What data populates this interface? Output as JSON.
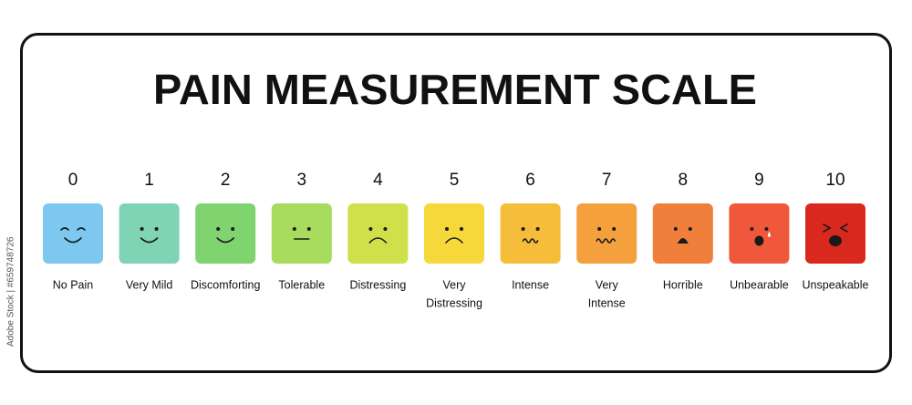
{
  "title": "PAIN MEASUREMENT SCALE",
  "watermark": "Adobe Stock | #659748726",
  "items": [
    {
      "score": "0",
      "label": [
        "No Pain"
      ],
      "color": "#7cc8f0"
    },
    {
      "score": "1",
      "label": [
        "Very Mild"
      ],
      "color": "#7fd4b6"
    },
    {
      "score": "2",
      "label": [
        "Discomforting"
      ],
      "color": "#80d46f"
    },
    {
      "score": "3",
      "label": [
        "Tolerable"
      ],
      "color": "#a8dc5c"
    },
    {
      "score": "4",
      "label": [
        "Distressing"
      ],
      "color": "#cfe04b"
    },
    {
      "score": "5",
      "label": [
        "Very",
        "Distressing"
      ],
      "color": "#f6d83b"
    },
    {
      "score": "6",
      "label": [
        "Intense"
      ],
      "color": "#f6bd3b"
    },
    {
      "score": "7",
      "label": [
        "Very",
        "Intense"
      ],
      "color": "#f4a13d"
    },
    {
      "score": "8",
      "label": [
        "Horrible"
      ],
      "color": "#f07f3b"
    },
    {
      "score": "9",
      "label": [
        "Unbearable"
      ],
      "color": "#f0583b"
    },
    {
      "score": "10",
      "label": [
        "Unspeakable"
      ],
      "color": "#d9291f"
    }
  ]
}
